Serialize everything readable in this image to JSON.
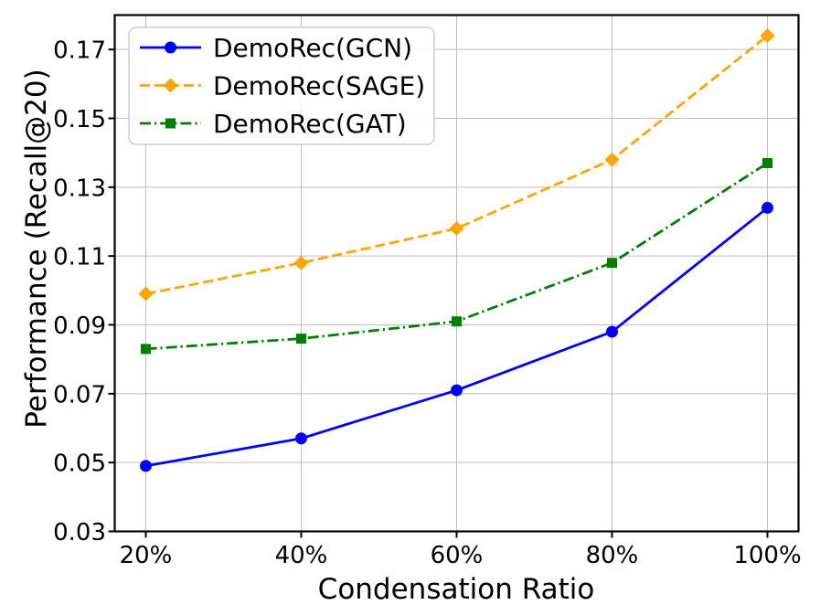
{
  "chart_data": {
    "type": "line",
    "title": "",
    "xlabel": "Condensation Ratio",
    "ylabel": "Performance (Recall@20)",
    "categories": [
      "20%",
      "40%",
      "60%",
      "80%",
      "100%"
    ],
    "x": [
      20,
      40,
      60,
      80,
      100
    ],
    "xlim": [
      16,
      104
    ],
    "ylim": [
      0.03,
      0.18
    ],
    "yticks": [
      0.03,
      0.05,
      0.07,
      0.09,
      0.11,
      0.13,
      0.15,
      0.17
    ],
    "ytick_labels": [
      "0.03",
      "0.05",
      "0.07",
      "0.09",
      "0.11",
      "0.13",
      "0.15",
      "0.17"
    ],
    "grid": true,
    "grid_color": "#bdbdbd",
    "axis_color": "#000000",
    "legend_position": "upper-left",
    "series": [
      {
        "name": "DemoRec(GCN)",
        "color": "#0000ff",
        "linestyle": "solid",
        "marker": "circle",
        "values": [
          0.049,
          0.057,
          0.071,
          0.088,
          0.124
        ]
      },
      {
        "name": "DemoRec(SAGE)",
        "color": "#ffa500",
        "linestyle": "dashed",
        "marker": "diamond",
        "values": [
          0.099,
          0.108,
          0.118,
          0.138,
          0.174
        ]
      },
      {
        "name": "DemoRec(GAT)",
        "color": "#008000",
        "linestyle": "dashdot",
        "marker": "square",
        "values": [
          0.083,
          0.086,
          0.091,
          0.108,
          0.137
        ]
      }
    ]
  }
}
